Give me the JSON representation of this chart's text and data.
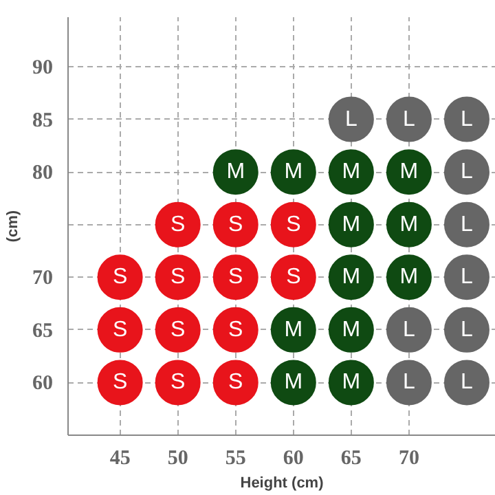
{
  "chart_data": {
    "type": "scatter",
    "xlabel": "Height (cm)",
    "ylabel": "(cm)",
    "xlim": [
      40.5,
      77.5
    ],
    "ylim": [
      55,
      94.7
    ],
    "xticks": [
      45,
      50,
      55,
      60,
      65,
      70
    ],
    "yticks": [
      60,
      65,
      70,
      {
        "value": 75,
        "label": null
      },
      80,
      85,
      90
    ],
    "grid": true,
    "marker": "circle",
    "series": [
      {
        "name": "S",
        "color": "#e8141b",
        "x": [
          45,
          45,
          45,
          50,
          50,
          50,
          50,
          55,
          55,
          55,
          55,
          60,
          60
        ],
        "values": [
          60,
          65,
          70,
          60,
          65,
          70,
          75,
          60,
          65,
          70,
          75,
          70,
          75
        ]
      },
      {
        "name": "M",
        "color": "#0f4a12",
        "x": [
          55,
          60,
          60,
          60,
          65,
          65,
          65,
          65,
          65,
          70,
          70,
          70
        ],
        "values": [
          80,
          60,
          65,
          80,
          60,
          65,
          70,
          75,
          80,
          70,
          75,
          80
        ]
      },
      {
        "name": "L",
        "color": "#666666",
        "x": [
          65,
          70,
          70,
          70,
          75,
          75,
          75,
          75,
          75,
          75
        ],
        "values": [
          85,
          60,
          65,
          85,
          60,
          65,
          70,
          75,
          80,
          85
        ]
      }
    ]
  }
}
